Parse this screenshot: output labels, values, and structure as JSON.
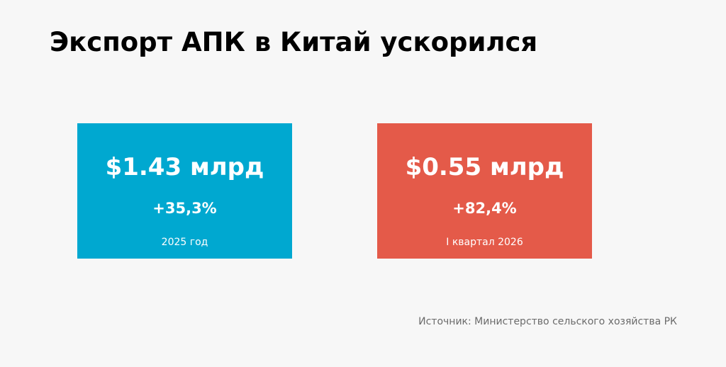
{
  "title": "Экспорт АПК в Китай ускорился",
  "cards": [
    {
      "value": "$1.43 млрд",
      "change": "+35,3%",
      "period": "2025 год",
      "color": "#00a8d0"
    },
    {
      "value": "$0.55 млрд",
      "change": "+82,4%",
      "period": "I квартал 2026",
      "color": "#e45a49"
    }
  ],
  "source": "Источник: Министерство сельского хозяйства РК",
  "colors": {
    "background": "#f7f7f7",
    "title": "#000000",
    "source": "#6b6b6b"
  }
}
